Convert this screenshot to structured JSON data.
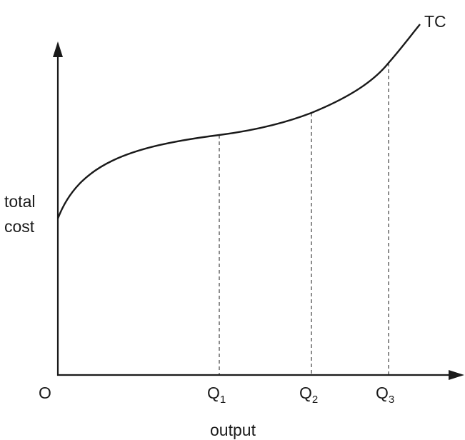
{
  "diagram": {
    "y_axis_label_line1": "total",
    "y_axis_label_line2": "cost",
    "x_axis_label": "output",
    "origin_label": "O",
    "curve_label": "TC",
    "ticks": [
      {
        "letter": "Q",
        "sub": "1"
      },
      {
        "letter": "Q",
        "sub": "2"
      },
      {
        "letter": "Q",
        "sub": "3"
      }
    ]
  }
}
